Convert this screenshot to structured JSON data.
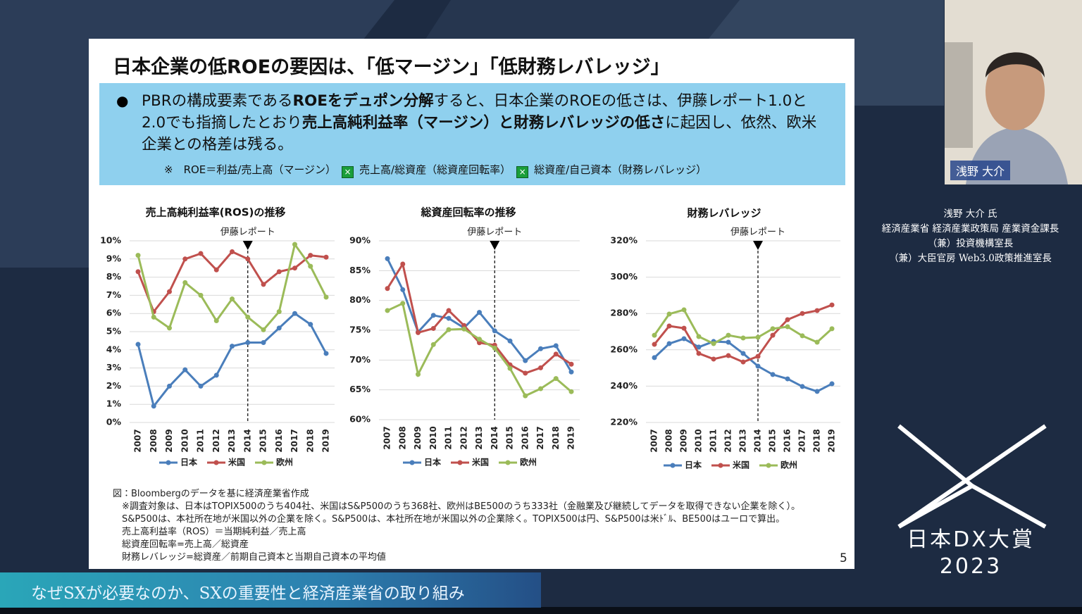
{
  "slide": {
    "title": "日本企業の低ROEの要因は、「低マージン」「低財務レバレッジ」",
    "bullet": [
      {
        "text": "PBRの構成要素である",
        "bold": false
      },
      {
        "text": "ROEをデュポン分解",
        "bold": true
      },
      {
        "text": "すると、日本企業のROEの低さは、伊藤レポート1.0と2.0でも指摘したとおり",
        "bold": false
      },
      {
        "text": "売上高純利益率（マージン）と財務レバレッジの低さ",
        "bold": true
      },
      {
        "text": "に起因し、依然、欧米企業との格差は残る。",
        "bold": false
      }
    ],
    "formula": [
      "※　ROE＝利益/売上高（マージン）",
      "売上高/総資産（総資産回転率）",
      "総資産/自己資本（財務レバレッジ）"
    ],
    "notes": [
      "図：Bloombergのデータを基に経済産業省作成",
      "　※調査対象は、日本はTOPIX500のうち404社、米国はS&P500のうち368社、欧州はBE500のうち333社（金融業及び継続してデータを取得できない企業を除く）。",
      "　S&P500は、本社所在地が米国以外の企業を除く。S&P500は、本社所在地が米国以外の企業除く。TOPIX500は円、S&P500は米ﾄﾞﾙ、BE500はユーロで算出。",
      "　売上高利益率（ROS）＝当期純利益／売上高",
      "　総資産回転率=売上高／総資産",
      "　財務レバレッジ=総資産／前期自己資本と当期自己資本の平均値"
    ],
    "page_number": "5"
  },
  "chart_data": [
    {
      "type": "line",
      "title": "売上高純利益率(ROS)の推移",
      "annotation": "伊藤レポート",
      "annotation_x": "2014",
      "grid": true,
      "categories": [
        "2007",
        "2008",
        "2009",
        "2010",
        "2011",
        "2012",
        "2013",
        "2014",
        "2015",
        "2016",
        "2017",
        "2018",
        "2019"
      ],
      "ylim": [
        0,
        10
      ],
      "yticks": [
        {
          "value": 0,
          "label": "0%"
        },
        {
          "value": 1,
          "label": "1%"
        },
        {
          "value": 2,
          "label": "2%"
        },
        {
          "value": 3,
          "label": "3%"
        },
        {
          "value": 4,
          "label": "4%"
        },
        {
          "value": 5,
          "label": "5%"
        },
        {
          "value": 6,
          "label": "6%"
        },
        {
          "value": 7,
          "label": "7%"
        },
        {
          "value": 8,
          "label": "8%"
        },
        {
          "value": 9,
          "label": "9%"
        },
        {
          "value": 10,
          "label": "10%"
        }
      ],
      "series": [
        {
          "name": "日本",
          "color": "#4a7ebb",
          "values": [
            4.3,
            0.9,
            2.0,
            2.9,
            2.0,
            2.6,
            4.2,
            4.4,
            4.4,
            5.2,
            6.0,
            5.4,
            3.8
          ]
        },
        {
          "name": "米国",
          "color": "#c0504d",
          "values": [
            8.3,
            6.1,
            7.2,
            9.0,
            9.3,
            8.4,
            9.4,
            9.0,
            7.6,
            8.3,
            8.5,
            9.2,
            9.1
          ]
        },
        {
          "name": "欧州",
          "color": "#9bbb59",
          "values": [
            9.2,
            5.8,
            5.2,
            7.7,
            7.0,
            5.6,
            6.8,
            5.8,
            5.1,
            6.1,
            9.8,
            8.6,
            6.9
          ]
        }
      ]
    },
    {
      "type": "line",
      "title": "総資産回転率の推移",
      "annotation": "伊藤レポート",
      "annotation_x": "2014",
      "grid": true,
      "categories": [
        "2007",
        "2008",
        "2009",
        "2010",
        "2011",
        "2012",
        "2013",
        "2014",
        "2015",
        "2016",
        "2017",
        "2018",
        "2019"
      ],
      "ylim": [
        60,
        90
      ],
      "yticks": [
        {
          "value": 60,
          "label": "60%"
        },
        {
          "value": 65,
          "label": "65%"
        },
        {
          "value": 70,
          "label": "70%"
        },
        {
          "value": 75,
          "label": "75%"
        },
        {
          "value": 80,
          "label": "80%"
        },
        {
          "value": 85,
          "label": "85%"
        },
        {
          "value": 90,
          "label": "90%"
        }
      ],
      "series": [
        {
          "name": "日本",
          "color": "#4a7ebb",
          "values": [
            87.0,
            81.8,
            74.7,
            77.5,
            77.0,
            75.4,
            78.0,
            74.9,
            73.2,
            69.9,
            71.9,
            72.4,
            68.0
          ]
        },
        {
          "name": "米国",
          "color": "#c0504d",
          "values": [
            82.0,
            86.1,
            74.6,
            75.3,
            78.3,
            75.8,
            72.9,
            72.5,
            69.2,
            67.8,
            68.7,
            71.0,
            69.3
          ]
        },
        {
          "name": "欧州",
          "color": "#9bbb59",
          "values": [
            78.3,
            79.5,
            67.6,
            72.6,
            75.1,
            75.2,
            73.5,
            72.0,
            68.6,
            64.0,
            65.2,
            66.9,
            64.7
          ]
        }
      ]
    },
    {
      "type": "line",
      "title": "財務レバレッジ",
      "annotation": "伊藤レポート",
      "annotation_x": "2014",
      "grid": true,
      "categories": [
        "2007",
        "2008",
        "2009",
        "2010",
        "2011",
        "2012",
        "2013",
        "2014",
        "2015",
        "2016",
        "2017",
        "2018",
        "2019"
      ],
      "ylim": [
        220,
        320
      ],
      "yticks": [
        {
          "value": 220,
          "label": "220%"
        },
        {
          "value": 240,
          "label": "240%"
        },
        {
          "value": 260,
          "label": "260%"
        },
        {
          "value": 280,
          "label": "280%"
        },
        {
          "value": 300,
          "label": "300%"
        },
        {
          "value": 320,
          "label": "320%"
        }
      ],
      "series": [
        {
          "name": "日本",
          "color": "#4a7ebb",
          "values": [
            255.7,
            263.4,
            266.1,
            261.5,
            264.6,
            264.2,
            258.0,
            251.0,
            246.4,
            244.0,
            239.8,
            237.1,
            241.3
          ]
        },
        {
          "name": "米国",
          "color": "#c0504d",
          "values": [
            263.0,
            273.1,
            271.9,
            258.0,
            254.9,
            256.8,
            253.3,
            256.4,
            268.0,
            276.6,
            280.0,
            281.6,
            284.7
          ]
        },
        {
          "name": "欧州",
          "color": "#9bbb59",
          "values": [
            268.0,
            279.7,
            282.0,
            267.3,
            263.4,
            268.0,
            266.5,
            266.9,
            271.6,
            272.7,
            267.7,
            264.2,
            271.6
          ]
        }
      ]
    }
  ],
  "speaker": {
    "name_tag": "浅野 大介",
    "lines": [
      "浅野 大介 氏",
      "経済産業省 経済産業政策局 産業資金課長",
      "（兼）投資機構室長",
      "（兼）大臣官房 Web3.0政策推進室長"
    ]
  },
  "logo": {
    "name": "日本DX大賞",
    "year": "2023"
  },
  "banner": "なぜSXが必要なのか、SXの重要性と経済産業省の取り組み"
}
